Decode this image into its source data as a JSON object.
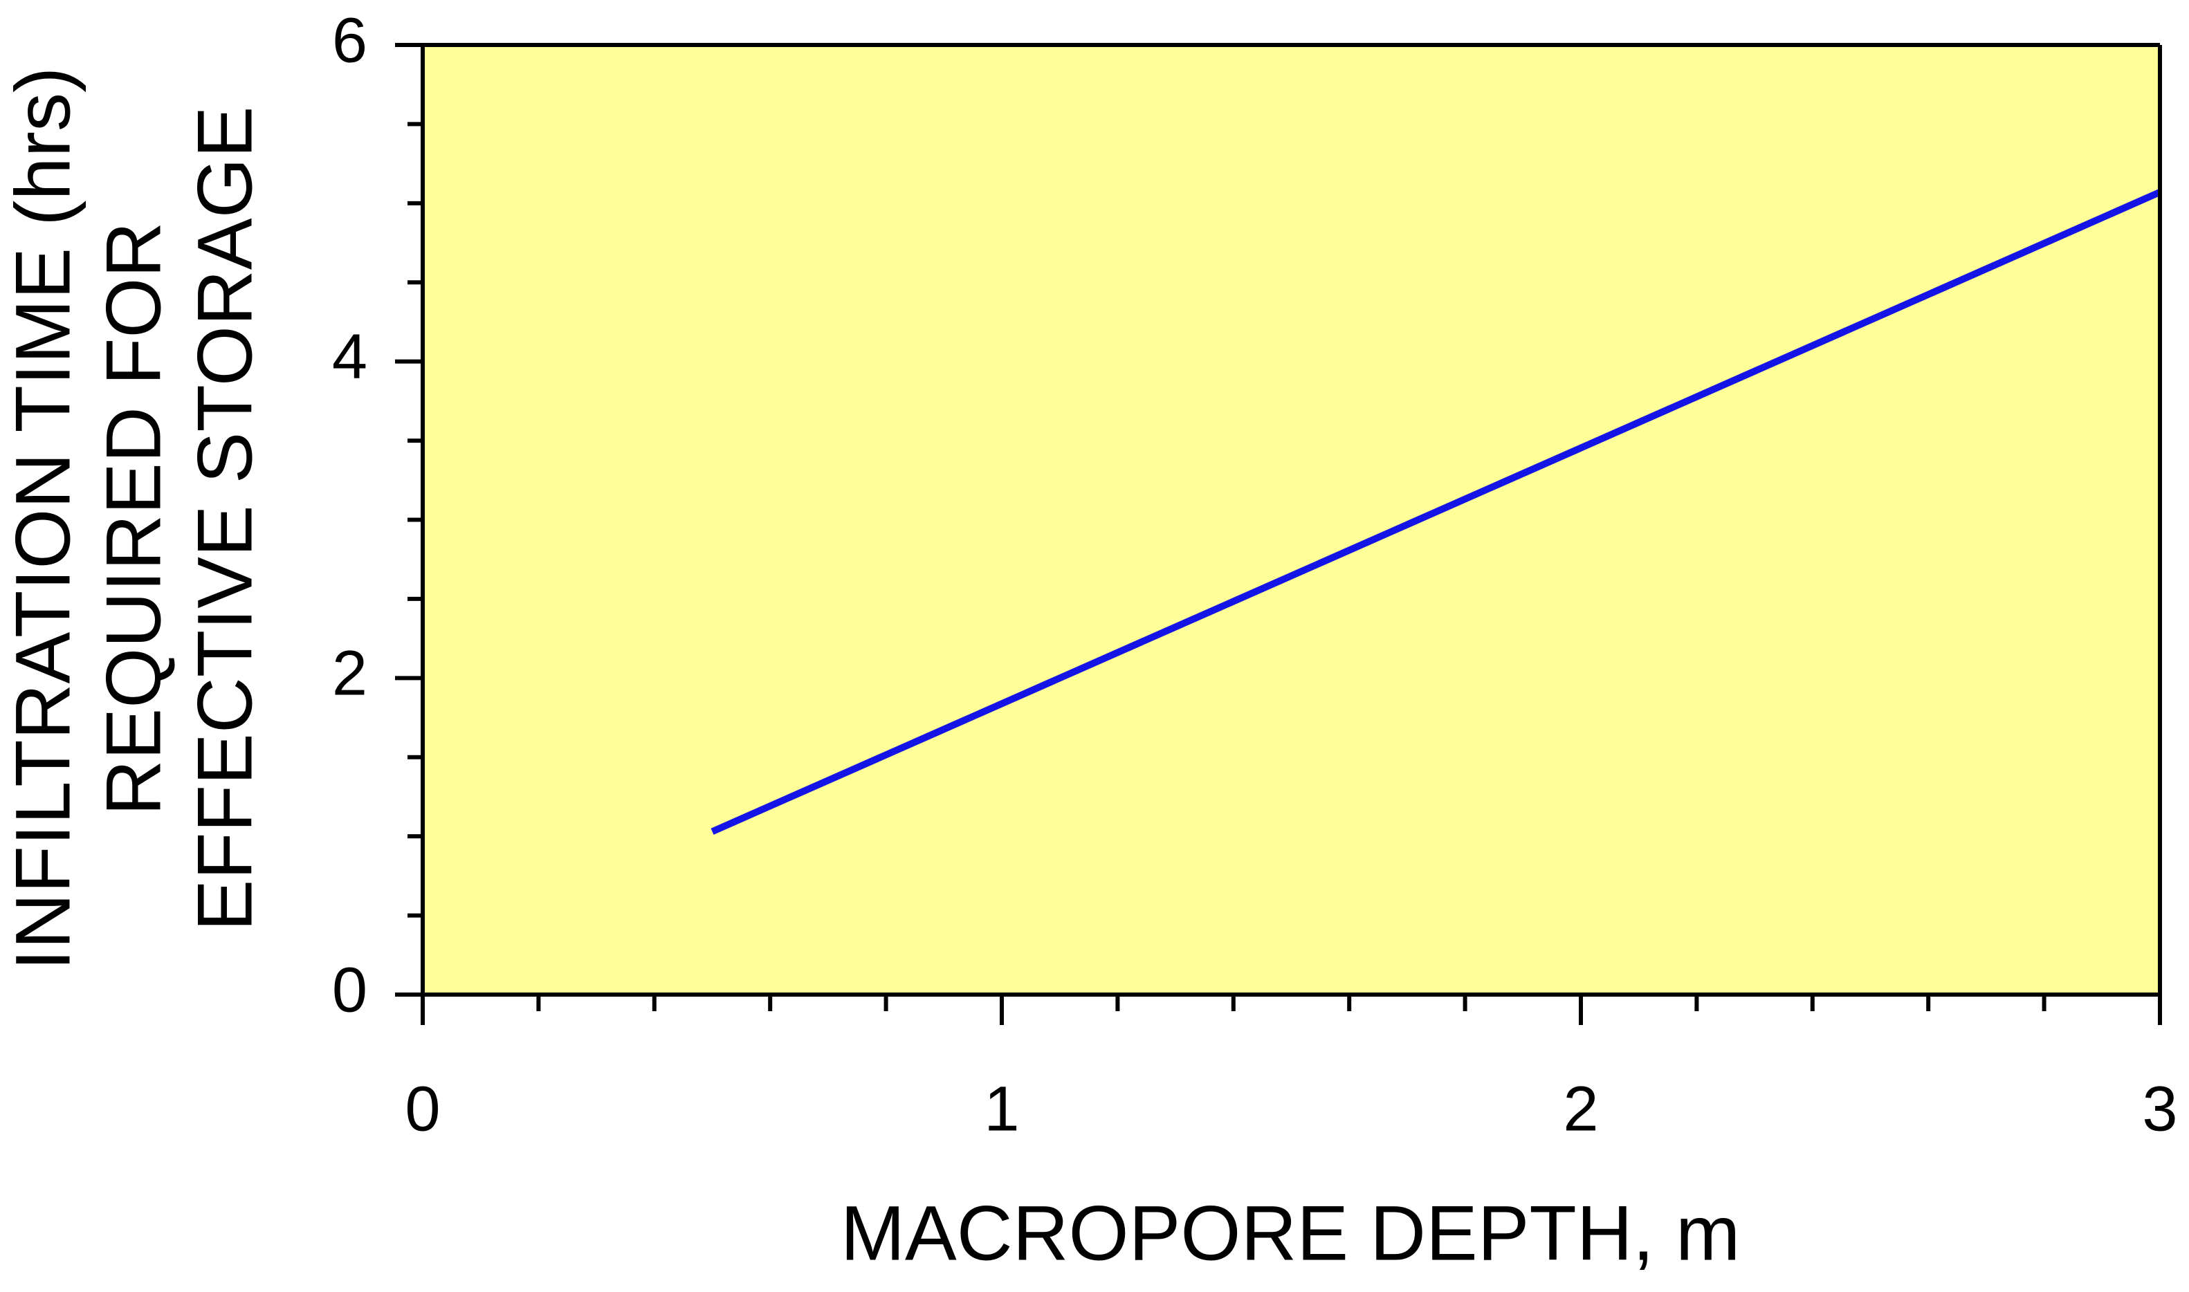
{
  "chart_data": {
    "type": "line",
    "xlabel": "MACROPORE DEPTH, m",
    "ylabel": [
      "INFILTRATION TIME (hrs)",
      "REQUIRED FOR",
      "EFFECTIVE STORAGE"
    ],
    "x": [
      0.5,
      3
    ],
    "series": [
      {
        "color": "#1414e6",
        "values": [
          1.03,
          5.07
        ]
      }
    ],
    "xlim": [
      0,
      3
    ],
    "ylim": [
      0,
      6
    ],
    "xticks": [
      0,
      1,
      2,
      3
    ],
    "yticks": [
      0,
      2,
      4,
      6
    ],
    "xminorticks": [
      0.2,
      0.4,
      0.6,
      0.8,
      1.2,
      1.4,
      1.6,
      1.8,
      2.2,
      2.4,
      2.6,
      2.8
    ],
    "yminorticks": [
      0.5,
      1,
      1.5,
      2.5,
      3,
      3.5,
      4.5,
      5,
      5.5
    ],
    "background": "#ffff99"
  }
}
